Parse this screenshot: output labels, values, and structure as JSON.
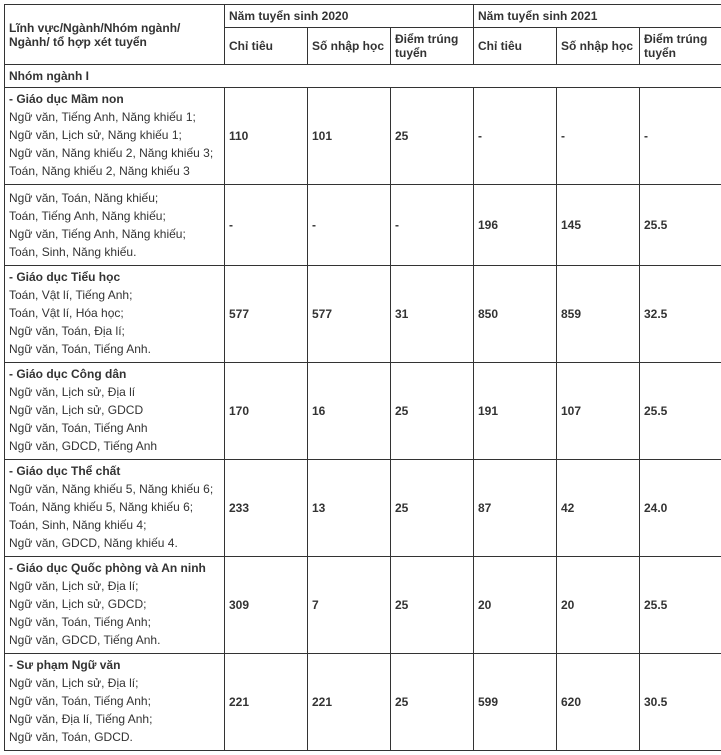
{
  "header": {
    "col0": "Lĩnh vực/Ngành/Nhóm ngành/\nNgành/ tổ hợp xét tuyển",
    "year2020": "Năm tuyển sinh 2020",
    "year2021": "Năm tuyển sinh 2021",
    "quota": "Chỉ tiêu",
    "enrolled": "Số nhập học",
    "score": "Điểm trúng tuyển"
  },
  "category": "Nhóm ngành I",
  "rows": [
    {
      "title": "- Giáo dục Mầm non",
      "combos": [
        "Ngữ văn, Tiếng Anh, Năng khiếu 1;",
        "Ngữ văn, Lịch sử, Năng khiếu 1;",
        "Ngữ văn, Năng khiếu 2, Năng khiếu 3;",
        "Toán, Năng khiếu 2, Năng khiếu 3"
      ],
      "y2020": {
        "quota": "110",
        "enrolled": "101",
        "score": "25"
      },
      "y2021": {
        "quota": "-",
        "enrolled": "-",
        "score": "-"
      }
    },
    {
      "title": "",
      "combos": [
        "Ngữ văn, Toán, Năng khiếu;",
        "Toán, Tiếng Anh, Năng khiếu;",
        "Ngữ văn, Tiếng Anh, Năng khiếu;",
        "Toán, Sinh, Năng khiếu."
      ],
      "y2020": {
        "quota": "-",
        "enrolled": "-",
        "score": "-"
      },
      "y2021": {
        "quota": "196",
        "enrolled": "145",
        "score": "25.5"
      }
    },
    {
      "title": "- Giáo dục Tiểu học",
      "combos": [
        "Toán, Vật lí, Tiếng Anh;",
        "Toán, Vật lí, Hóa học;",
        "Ngữ văn, Toán, Địa lí;",
        "Ngữ văn, Toán, Tiếng Anh."
      ],
      "y2020": {
        "quota": "577",
        "enrolled": "577",
        "score": "31"
      },
      "y2021": {
        "quota": "850",
        "enrolled": "859",
        "score": "32.5"
      }
    },
    {
      "title": "- Giáo dục Công dân",
      "combos": [
        "Ngữ văn, Lịch sử, Địa lí",
        "Ngữ văn, Lịch sử, GDCD",
        "Ngữ văn, Toán, Tiếng Anh",
        "Ngữ văn,  GDCD, Tiếng Anh"
      ],
      "y2020": {
        "quota": "170",
        "enrolled": "16",
        "score": "25"
      },
      "y2021": {
        "quota": "191",
        "enrolled": "107",
        "score": "25.5"
      }
    },
    {
      "title": "- Giáo dục Thể chất",
      "combos": [
        "Ngữ văn, Năng khiếu 5, Năng khiếu 6;",
        "Toán,  Năng khiếu 5, Năng khiếu 6;",
        "Toán, Sinh, Năng khiếu 4;",
        "Ngữ văn, GDCD, Năng khiếu 4."
      ],
      "y2020": {
        "quota": "233",
        "enrolled": "13",
        "score": "25"
      },
      "y2021": {
        "quota": "87",
        "enrolled": "42",
        "score": "24.0"
      }
    },
    {
      "title": "- Giáo dục Quốc phòng và An ninh",
      "combos": [
        "Ngữ văn, Lịch sử, Địa lí;",
        "Ngữ văn, Lịch sử, GDCD;",
        "Ngữ văn, Toán, Tiếng Anh;",
        "Ngữ văn,  GDCD, Tiếng Anh."
      ],
      "y2020": {
        "quota": "309",
        "enrolled": "7",
        "score": "25"
      },
      "y2021": {
        "quota": "20",
        "enrolled": "20",
        "score": "25.5"
      }
    },
    {
      "title": "- Sư phạm Ngữ văn",
      "combos": [
        "Ngữ văn, Lịch sử, Địa lí;",
        "Ngữ văn, Toán, Tiếng Anh;",
        "Ngữ văn, Địa lí, Tiếng Anh;",
        "Ngữ văn, Toán, GDCD."
      ],
      "y2020": {
        "quota": "221",
        "enrolled": "221",
        "score": "25"
      },
      "y2021": {
        "quota": "599",
        "enrolled": "620",
        "score": "30.5"
      }
    }
  ]
}
